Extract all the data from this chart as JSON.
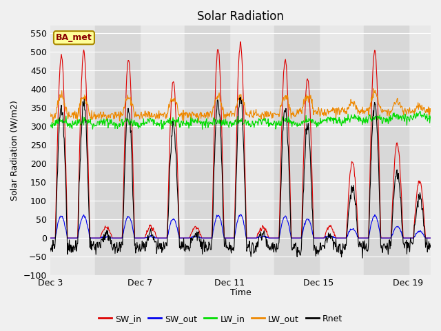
{
  "title": "Solar Radiation",
  "ylabel": "Solar Radiation (W/m2)",
  "xlabel": "Time",
  "ylim": [
    -100,
    570
  ],
  "yticks": [
    -100,
    -50,
    0,
    50,
    100,
    150,
    200,
    250,
    300,
    350,
    400,
    450,
    500,
    550
  ],
  "xtick_labels": [
    "Dec 3",
    "Dec 7",
    "Dec 11",
    "Dec 15",
    "Dec 19"
  ],
  "xtick_positions": [
    0,
    4,
    8,
    12,
    16
  ],
  "xlim": [
    0,
    17
  ],
  "fig_bg": "#f0f0f0",
  "plot_bg": "#e8e8e8",
  "band_light": "#e8e8e8",
  "band_dark": "#d8d8d8",
  "colors": {
    "SW_in": "#dd0000",
    "SW_out": "#0000ee",
    "LW_in": "#00dd00",
    "LW_out": "#ee8800",
    "Rnet": "#000000"
  },
  "title_fontsize": 12,
  "axis_fontsize": 9,
  "tick_fontsize": 9,
  "legend_fontsize": 9,
  "annotation_text": "BA_met",
  "annotation_color": "#8b0000",
  "annotation_bg": "#ffff99",
  "annotation_edge": "#aa8800"
}
